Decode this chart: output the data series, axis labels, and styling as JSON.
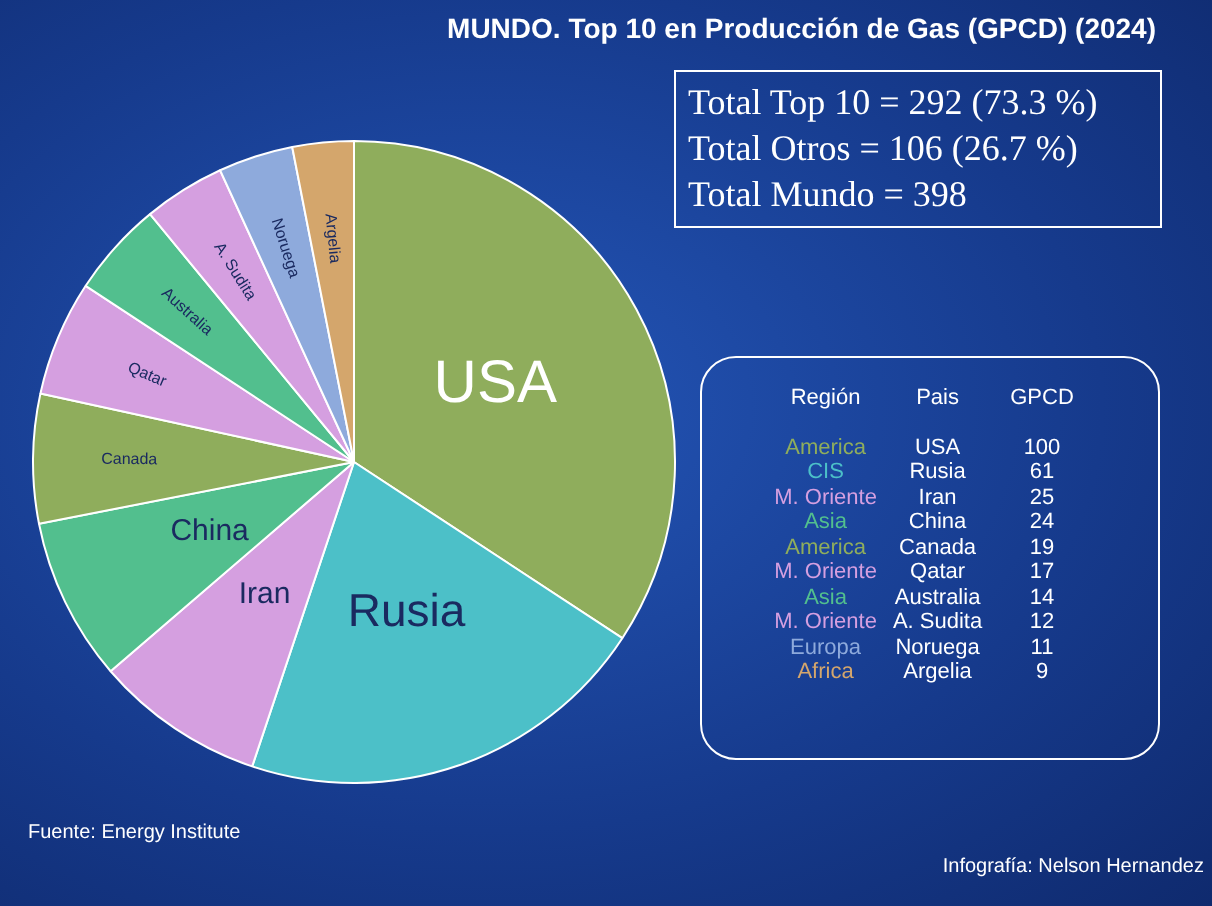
{
  "chart_data": {
    "type": "other",
    "title": "MUNDO. Top 10  en Producción de Gas (GPCD) (2024)",
    "legend_title": "Región",
    "xlabel": "Pais",
    "ylabel": "GPCD",
    "categories": [
      "USA",
      "Rusia",
      "Iran",
      "China",
      "Canada",
      "Qatar",
      "Australia",
      "A. Sudita",
      "Noruega",
      "Argelia"
    ],
    "series": [
      {
        "name": "America",
        "color": "#8fad5c",
        "values": [
          100,
          null,
          null,
          null,
          19,
          null,
          null,
          null,
          null,
          null
        ]
      },
      {
        "name": "CIS",
        "color": "#4cc0c8",
        "values": [
          null,
          61,
          null,
          null,
          null,
          null,
          null,
          null,
          null,
          null
        ]
      },
      {
        "name": "M. Oriente",
        "color": "#d59fe0",
        "values": [
          null,
          null,
          25,
          null,
          null,
          17,
          null,
          12,
          null,
          null
        ]
      },
      {
        "name": "Asia",
        "color": "#52bf8e",
        "values": [
          null,
          null,
          null,
          24,
          null,
          null,
          14,
          null,
          null,
          null
        ]
      },
      {
        "name": "Europa",
        "color": "#8eaadc",
        "values": [
          null,
          null,
          null,
          null,
          null,
          null,
          null,
          null,
          11,
          null
        ]
      },
      {
        "name": "Africa",
        "color": "#d4a66c",
        "values": [
          null,
          null,
          null,
          null,
          null,
          null,
          null,
          null,
          null,
          9
        ]
      }
    ],
    "data_labels": true,
    "annotations": [
      "Total  Top 10 = 292 (73.3 %)",
      "Total Otros =  106 (26.7 %)",
      "Total  Mundo = 398",
      "Fuente: Energy Institute",
      "Infografía: Nelson Hernandez"
    ]
  }
}
